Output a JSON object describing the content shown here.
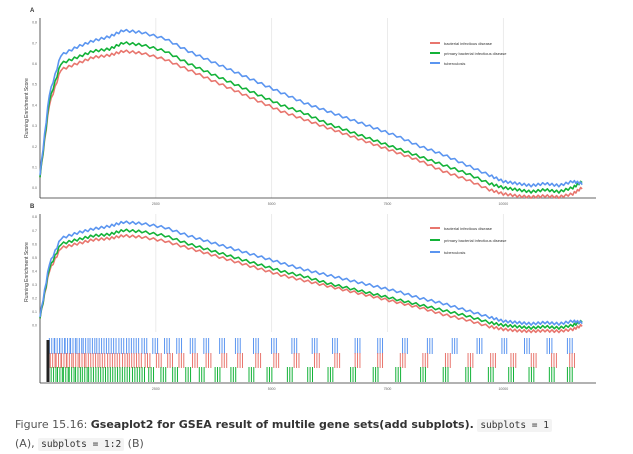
{
  "colors": {
    "bacterial_infectious_disease": "#e8766e",
    "primary_bacterial_infectious_disease": "#13b238",
    "tuberculosis": "#5b95f0",
    "grid": "#e6e6e6",
    "axis": "#333333"
  },
  "chart_data": [
    {
      "panel": "A",
      "type": "line",
      "ylabel": "Running Enrichment Score",
      "xlim": [
        0,
        12000
      ],
      "ylim": [
        -0.05,
        0.82
      ],
      "x_ticks": [
        "2500",
        "5000",
        "7500",
        "10000"
      ],
      "y_ticks": [
        "0.0",
        "0.1",
        "0.2",
        "0.3",
        "0.4",
        "0.5",
        "0.6",
        "0.7",
        "0.8"
      ],
      "legend_position": "top-right",
      "series": [
        {
          "name": "bacterial infectious disease",
          "key": "bacterial_infectious_disease",
          "x": [
            0,
            200,
            450,
            800,
            1150,
            1500,
            1800,
            2200,
            2700,
            3200,
            3700,
            4200,
            4700,
            5200,
            5700,
            6200,
            6700,
            7200,
            7700,
            8200,
            8700,
            9200,
            9700,
            10000,
            10300,
            10600,
            10900,
            11200,
            11500,
            11700
          ],
          "y": [
            0.05,
            0.4,
            0.57,
            0.6,
            0.63,
            0.64,
            0.66,
            0.65,
            0.62,
            0.57,
            0.52,
            0.47,
            0.42,
            0.37,
            0.33,
            0.29,
            0.25,
            0.21,
            0.17,
            0.13,
            0.08,
            0.04,
            -0.01,
            -0.03,
            -0.04,
            -0.045,
            -0.04,
            -0.045,
            -0.03,
            0.0
          ]
        },
        {
          "name": "primary bacterial infectious disease",
          "key": "primary_bacterial_infectious_disease",
          "x": [
            0,
            200,
            450,
            800,
            1150,
            1500,
            1800,
            2200,
            2700,
            3200,
            3700,
            4200,
            4700,
            5200,
            5700,
            6200,
            6700,
            7200,
            7700,
            8200,
            8700,
            9200,
            9700,
            10000,
            10300,
            10600,
            10900,
            11200,
            11500,
            11700
          ],
          "y": [
            0.05,
            0.42,
            0.6,
            0.63,
            0.66,
            0.67,
            0.7,
            0.69,
            0.66,
            0.6,
            0.55,
            0.5,
            0.45,
            0.4,
            0.36,
            0.31,
            0.27,
            0.23,
            0.19,
            0.15,
            0.11,
            0.07,
            0.02,
            0.0,
            -0.01,
            -0.02,
            -0.01,
            -0.02,
            0.0,
            0.03
          ]
        },
        {
          "name": "tuberculosis",
          "key": "tuberculosis",
          "x": [
            0,
            200,
            450,
            800,
            1150,
            1500,
            1800,
            2200,
            2700,
            3200,
            3700,
            4200,
            4700,
            5200,
            5700,
            6200,
            6700,
            7200,
            7700,
            8200,
            8700,
            9200,
            9700,
            10000,
            10300,
            10600,
            10900,
            11200,
            11500,
            11700
          ],
          "y": [
            0.06,
            0.45,
            0.64,
            0.68,
            0.71,
            0.73,
            0.76,
            0.75,
            0.72,
            0.66,
            0.61,
            0.56,
            0.51,
            0.46,
            0.41,
            0.37,
            0.33,
            0.29,
            0.25,
            0.2,
            0.16,
            0.11,
            0.06,
            0.03,
            0.02,
            0.01,
            0.02,
            0.01,
            0.03,
            0.02
          ]
        }
      ]
    },
    {
      "panel": "B",
      "type": "line",
      "ylabel": "Running Enrichment Score",
      "xlim": [
        0,
        12000
      ],
      "ylim": [
        -0.05,
        0.82
      ],
      "x_ticks": [
        "2500",
        "5000",
        "7500",
        "10000"
      ],
      "y_ticks": [
        "0.0",
        "0.1",
        "0.2",
        "0.3",
        "0.4",
        "0.5",
        "0.6",
        "0.7",
        "0.8"
      ],
      "legend_position": "top-right",
      "series": [
        {
          "name": "bacterial infectious disease",
          "key": "bacterial_infectious_disease",
          "x": [
            0,
            200,
            450,
            800,
            1150,
            1500,
            1800,
            2200,
            2700,
            3200,
            3700,
            4200,
            4700,
            5200,
            5700,
            6200,
            6700,
            7200,
            7700,
            8200,
            8700,
            9200,
            9700,
            10000,
            10300,
            10600,
            10900,
            11200,
            11500,
            11700
          ],
          "y": [
            0.05,
            0.4,
            0.57,
            0.6,
            0.63,
            0.64,
            0.66,
            0.65,
            0.62,
            0.57,
            0.52,
            0.47,
            0.42,
            0.37,
            0.33,
            0.29,
            0.25,
            0.21,
            0.17,
            0.13,
            0.08,
            0.04,
            -0.01,
            -0.03,
            -0.04,
            -0.045,
            -0.04,
            -0.045,
            -0.03,
            0.0
          ]
        },
        {
          "name": "primary bacterial infectious disease",
          "key": "primary_bacterial_infectious_disease",
          "x": [
            0,
            200,
            450,
            800,
            1150,
            1500,
            1800,
            2200,
            2700,
            3200,
            3700,
            4200,
            4700,
            5200,
            5700,
            6200,
            6700,
            7200,
            7700,
            8200,
            8700,
            9200,
            9700,
            10000,
            10300,
            10600,
            10900,
            11200,
            11500,
            11700
          ],
          "y": [
            0.05,
            0.42,
            0.6,
            0.63,
            0.66,
            0.67,
            0.7,
            0.69,
            0.66,
            0.6,
            0.55,
            0.5,
            0.45,
            0.4,
            0.36,
            0.31,
            0.27,
            0.23,
            0.19,
            0.15,
            0.11,
            0.07,
            0.02,
            0.0,
            -0.01,
            -0.02,
            -0.01,
            -0.02,
            0.0,
            0.03
          ]
        },
        {
          "name": "tuberculosis",
          "key": "tuberculosis",
          "x": [
            0,
            200,
            450,
            800,
            1150,
            1500,
            1800,
            2200,
            2700,
            3200,
            3700,
            4200,
            4700,
            5200,
            5700,
            6200,
            6700,
            7200,
            7700,
            8200,
            8700,
            9200,
            9700,
            10000,
            10300,
            10600,
            10900,
            11200,
            11500,
            11700
          ],
          "y": [
            0.06,
            0.45,
            0.64,
            0.68,
            0.71,
            0.73,
            0.76,
            0.75,
            0.72,
            0.66,
            0.61,
            0.56,
            0.51,
            0.46,
            0.41,
            0.37,
            0.33,
            0.29,
            0.25,
            0.2,
            0.16,
            0.11,
            0.06,
            0.03,
            0.02,
            0.01,
            0.02,
            0.01,
            0.03,
            0.02
          ]
        }
      ],
      "hit_track": {
        "bacterial_infectious_disease": [
          50,
          180,
          300,
          420,
          560,
          700,
          840,
          1000,
          1150,
          1320,
          1480,
          1650,
          1800,
          1960,
          2150,
          2400,
          2650,
          2900,
          3200,
          3500,
          3850,
          4200,
          4600,
          5000,
          5450,
          5900,
          6350,
          6800,
          7300,
          7800,
          8300,
          8800,
          9300,
          9800,
          10250,
          10700,
          11150,
          11550
        ],
        "primary_bacterial_infectious_disease": [
          70,
          210,
          340,
          470,
          610,
          760,
          900,
          1060,
          1220,
          1380,
          1540,
          1700,
          1870,
          2030,
          2230,
          2500,
          2760,
          3050,
          3350,
          3700,
          4050,
          4450,
          4850,
          5300,
          5750,
          6200,
          6700,
          7200,
          7700,
          8250,
          8750,
          9250,
          9750,
          10200,
          10650,
          11100,
          11500
        ],
        "tuberculosis": [
          30,
          150,
          260,
          380,
          500,
          640,
          780,
          930,
          1080,
          1240,
          1400,
          1570,
          1740,
          1900,
          2080,
          2320,
          2580,
          2850,
          3150,
          3450,
          3800,
          4150,
          4550,
          4950,
          5400,
          5850,
          6300,
          6800,
          7300,
          7850,
          8400,
          8950,
          9500,
          10050,
          10550,
          11050,
          11500
        ]
      }
    }
  ],
  "caption": {
    "figure_label": "Figure 15.16: ",
    "bold_text": "Gseaplot2 for GSEA result of multile gene sets(add subplots).",
    "code1": "subplots = 1",
    "text_a": "(A), ",
    "code2": "subplots = 1:2",
    "text_b": " (B)"
  }
}
